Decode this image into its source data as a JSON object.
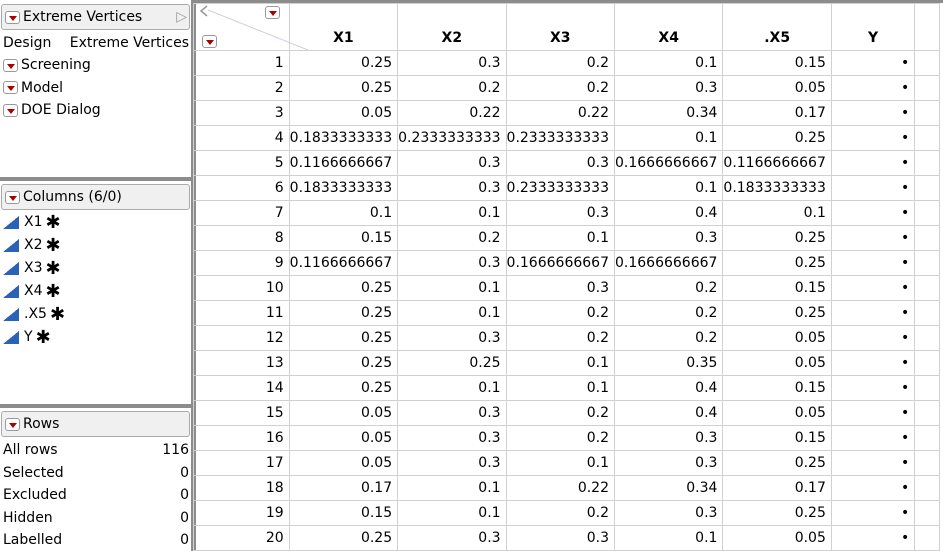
{
  "design_panel": {
    "title": "Extreme Vertices",
    "design_label": "Design",
    "design_value": "Extreme Vertices",
    "scripts": [
      "Screening",
      "Model",
      "DOE Dialog"
    ]
  },
  "columns_panel": {
    "title": "Columns (6/0)",
    "columns": [
      "X1",
      "X2",
      "X3",
      "X4",
      ".X5",
      "Y"
    ]
  },
  "rows_panel": {
    "title": "Rows",
    "items": [
      {
        "label": "All rows",
        "value": "116"
      },
      {
        "label": "Selected",
        "value": "0"
      },
      {
        "label": "Excluded",
        "value": "0"
      },
      {
        "label": "Hidden",
        "value": "0"
      },
      {
        "label": "Labelled",
        "value": "0"
      }
    ]
  },
  "table": {
    "headers": [
      "X1",
      "X2",
      "X3",
      "X4",
      ".X5",
      "Y"
    ],
    "rows": [
      [
        "1",
        "0.25",
        "0.3",
        "0.2",
        "0.1",
        "0.15",
        "•"
      ],
      [
        "2",
        "0.25",
        "0.2",
        "0.2",
        "0.3",
        "0.05",
        "•"
      ],
      [
        "3",
        "0.05",
        "0.22",
        "0.22",
        "0.34",
        "0.17",
        "•"
      ],
      [
        "4",
        "0.1833333333",
        "0.2333333333",
        "0.2333333333",
        "0.1",
        "0.25",
        "•"
      ],
      [
        "5",
        "0.1166666667",
        "0.3",
        "0.3",
        "0.1666666667",
        "0.1166666667",
        "•"
      ],
      [
        "6",
        "0.1833333333",
        "0.3",
        "0.2333333333",
        "0.1",
        "0.1833333333",
        "•"
      ],
      [
        "7",
        "0.1",
        "0.1",
        "0.3",
        "0.4",
        "0.1",
        "•"
      ],
      [
        "8",
        "0.15",
        "0.2",
        "0.1",
        "0.3",
        "0.25",
        "•"
      ],
      [
        "9",
        "0.1166666667",
        "0.3",
        "0.1666666667",
        "0.1666666667",
        "0.25",
        "•"
      ],
      [
        "10",
        "0.25",
        "0.1",
        "0.3",
        "0.2",
        "0.15",
        "•"
      ],
      [
        "11",
        "0.25",
        "0.1",
        "0.2",
        "0.2",
        "0.25",
        "•"
      ],
      [
        "12",
        "0.25",
        "0.3",
        "0.2",
        "0.2",
        "0.05",
        "•"
      ],
      [
        "13",
        "0.25",
        "0.25",
        "0.1",
        "0.35",
        "0.05",
        "•"
      ],
      [
        "14",
        "0.25",
        "0.1",
        "0.1",
        "0.4",
        "0.15",
        "•"
      ],
      [
        "15",
        "0.05",
        "0.3",
        "0.2",
        "0.4",
        "0.05",
        "•"
      ],
      [
        "16",
        "0.05",
        "0.3",
        "0.2",
        "0.3",
        "0.15",
        "•"
      ],
      [
        "17",
        "0.05",
        "0.3",
        "0.1",
        "0.3",
        "0.25",
        "•"
      ],
      [
        "18",
        "0.17",
        "0.1",
        "0.22",
        "0.34",
        "0.17",
        "•"
      ],
      [
        "19",
        "0.15",
        "0.1",
        "0.2",
        "0.3",
        "0.25",
        "•"
      ],
      [
        "20",
        "0.25",
        "0.3",
        "0.3",
        "0.1",
        "0.05",
        "•"
      ]
    ]
  }
}
